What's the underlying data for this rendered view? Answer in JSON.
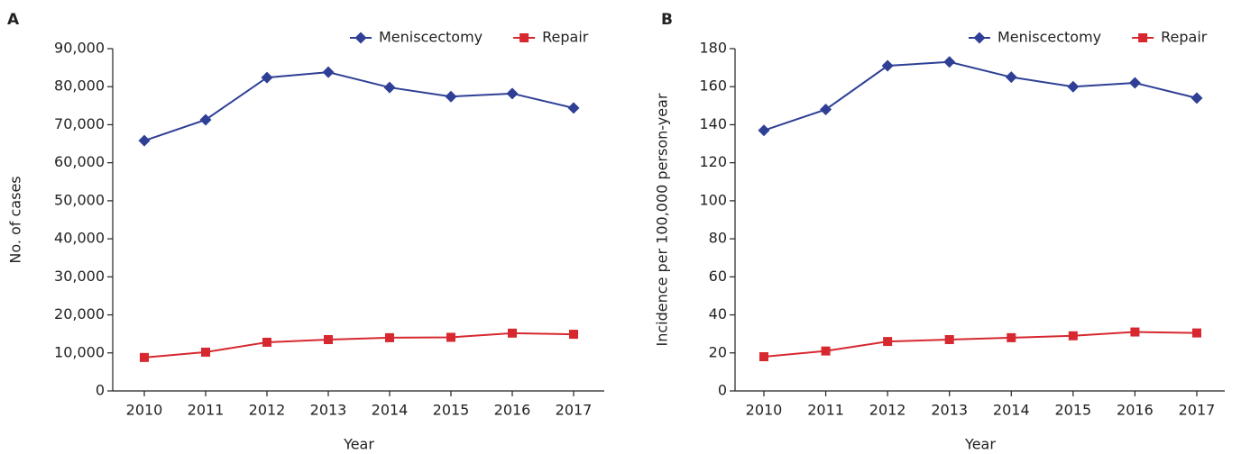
{
  "chart_data": [
    {
      "type": "line",
      "label": "A",
      "y_label": "No. of cases",
      "x_label": "Year",
      "categories": [
        "2010",
        "2011",
        "2012",
        "2013",
        "2014",
        "2015",
        "2016",
        "2017"
      ],
      "series": [
        {
          "name": "Meniscectomy",
          "color": "#2e3f95",
          "marker": "diamond",
          "values": [
            65800,
            71300,
            82400,
            83800,
            79800,
            77400,
            78200,
            74400
          ]
        },
        {
          "name": "Repair",
          "color": "#d7282f",
          "marker": "square",
          "values": [
            8800,
            10200,
            12800,
            13500,
            14000,
            14100,
            15200,
            14900
          ]
        }
      ],
      "ylim": [
        0,
        90000
      ],
      "yticks": [
        0,
        {
          "value": 10000,
          "label": "10,000"
        },
        {
          "value": 20000,
          "label": "20,000"
        },
        {
          "value": 30000,
          "label": "30,000"
        },
        {
          "value": 40000,
          "label": "40,000"
        },
        {
          "value": 50000,
          "label": "50,000"
        },
        {
          "value": 60000,
          "label": "60,000"
        },
        {
          "value": 70000,
          "label": "70,000"
        },
        {
          "value": 80000,
          "label": "80,000"
        },
        {
          "value": 90000,
          "label": "90,000"
        }
      ],
      "legend": "top-right",
      "grid": false
    },
    {
      "type": "line",
      "label": "B",
      "y_label": "Incidence per 100,000 person-year",
      "x_label": "Year",
      "categories": [
        "2010",
        "2011",
        "2012",
        "2013",
        "2014",
        "2015",
        "2016",
        "2017"
      ],
      "series": [
        {
          "name": "Meniscectomy",
          "color": "#2e3f95",
          "marker": "diamond",
          "values": [
            137,
            148,
            171,
            173,
            165,
            160,
            162,
            154
          ]
        },
        {
          "name": "Repair",
          "color": "#d7282f",
          "marker": "square",
          "values": [
            18,
            21,
            26,
            27,
            28,
            29,
            31,
            30.5
          ]
        }
      ],
      "ylim": [
        0,
        180
      ],
      "yticks": [
        0,
        20,
        40,
        60,
        80,
        100,
        120,
        140,
        160,
        180
      ],
      "legend": "top-right",
      "grid": false
    }
  ]
}
